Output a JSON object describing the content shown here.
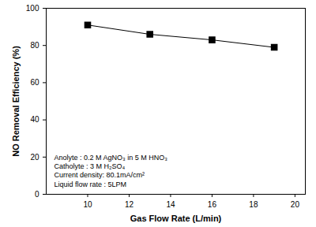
{
  "chart_data": {
    "type": "line",
    "x_label": "Gas Flow Rate (L/min)",
    "y_label": "NO Removal Efficiency (%)",
    "x": [
      10,
      13,
      16,
      19
    ],
    "values": [
      91,
      86,
      83,
      79
    ],
    "color": "#000000",
    "marker": "square",
    "line_style": "solid",
    "xlim": [
      8,
      20.5
    ],
    "xticks": [
      10,
      12,
      14,
      16,
      18,
      20
    ],
    "ylim": [
      0,
      100
    ],
    "yticks": [
      0,
      20,
      40,
      60,
      80,
      100
    ],
    "grid": false,
    "annotations": [
      "Anolyte : 0.2 M AgNO₃ in 5 M HNO₃",
      "Catholyte : 3 M H₂SO₄",
      "Current density: 80.1mA/cm²",
      "Liquid flow rate : 5LPM"
    ]
  }
}
